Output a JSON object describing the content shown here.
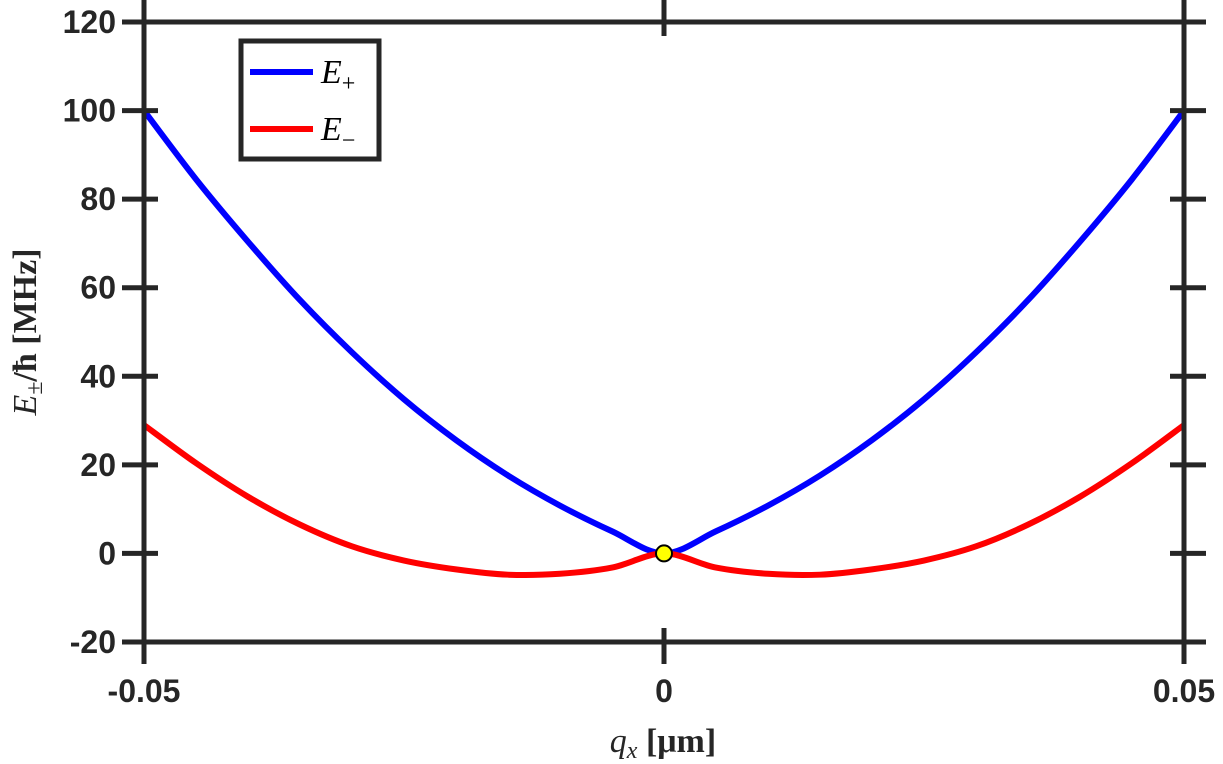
{
  "chart_data": {
    "type": "line",
    "title": "",
    "xlabel": {
      "var": "q",
      "sub": "x",
      "unit": " [μm]"
    },
    "ylabel": {
      "var": "E",
      "sub": "±",
      "rest": "/ħ [MHz]"
    },
    "xlim": [
      -0.05,
      0.05
    ],
    "ylim": [
      -20,
      120
    ],
    "x_ticks": [
      -0.05,
      0,
      0.05
    ],
    "x_tick_labels": [
      "-0.05",
      "0",
      "0.05"
    ],
    "y_ticks": [
      -20,
      0,
      20,
      40,
      60,
      80,
      100,
      120
    ],
    "y_tick_labels": [
      "-20",
      "0",
      "20",
      "40",
      "60",
      "80",
      "100",
      "120"
    ],
    "grid": false,
    "legend_position": "top-left",
    "series": [
      {
        "name": "E₊",
        "legend_var": "E",
        "legend_sub": "+",
        "color": "#0000ff",
        "x": [
          -0.05,
          -0.045,
          -0.04,
          -0.035,
          -0.03,
          -0.025,
          -0.02,
          -0.015,
          -0.01,
          -0.005,
          0,
          0.005,
          0.01,
          0.015,
          0.02,
          0.025,
          0.03,
          0.035,
          0.04,
          0.045,
          0.05
        ],
        "y": [
          100,
          84.5,
          70.4,
          57.2,
          45.4,
          34.8,
          25.6,
          17.6,
          10.8,
          5.0,
          0,
          5.0,
          10.8,
          17.6,
          25.6,
          34.8,
          45.4,
          57.2,
          70.4,
          84.5,
          100
        ]
      },
      {
        "name": "E₋",
        "legend_var": "E",
        "legend_sub": "−",
        "color": "#ff0000",
        "x": [
          -0.05,
          -0.045,
          -0.04,
          -0.035,
          -0.03,
          -0.025,
          -0.02,
          -0.015,
          -0.01,
          -0.005,
          0,
          0.005,
          0.01,
          0.015,
          0.02,
          0.025,
          0.03,
          0.035,
          0.04,
          0.045,
          0.05
        ],
        "y": [
          29,
          20.4,
          12.8,
          6.5,
          1.6,
          -1.6,
          -3.6,
          -4.8,
          -4.6,
          -3.2,
          0,
          -3.2,
          -4.6,
          -4.8,
          -3.6,
          -1.6,
          1.6,
          6.5,
          12.8,
          20.4,
          29
        ]
      }
    ],
    "markers": [
      {
        "x": 0,
        "y": 0,
        "fill": "#ffff00",
        "stroke": "#000000"
      }
    ]
  }
}
